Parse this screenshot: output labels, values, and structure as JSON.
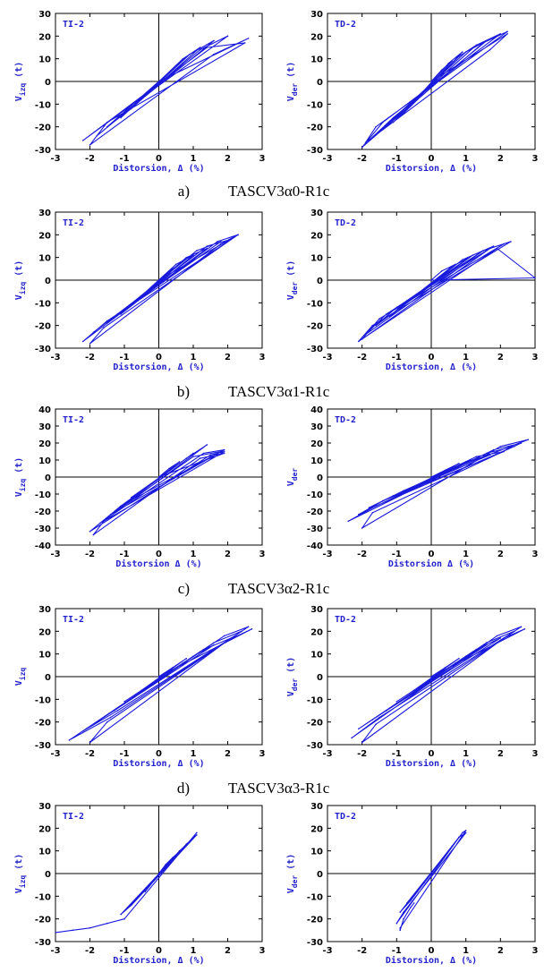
{
  "figure": {
    "rows": [
      {
        "letter": "a)",
        "specimen": "TASCV3α0-R1c"
      },
      {
        "letter": "b)",
        "specimen": "TASCV3α1-R1c"
      },
      {
        "letter": "c)",
        "specimen": "TASCV3α2-R1c"
      },
      {
        "letter": "d)",
        "specimen": "TASCV3α3-R1c"
      },
      {
        "letter": "",
        "specimen": ""
      }
    ]
  },
  "colors": {
    "curve": "#1a1adc",
    "text": "#2222cc",
    "axis": "#000000"
  },
  "chart_data": [
    {
      "type": "line",
      "row": 0,
      "panel": "left",
      "title": "TI-2",
      "ylabel_main": "V",
      "ylabel_sub": "izq",
      "ylabel_unit": "(t)",
      "xlabel": "Distorsion, Δ (%)",
      "xlim": [
        -3,
        3
      ],
      "ylim": [
        -30,
        30
      ],
      "xticks": [
        -3,
        -2,
        -1,
        0,
        1,
        2,
        3
      ],
      "yticks": [
        -30,
        -20,
        -10,
        0,
        10,
        20,
        30
      ],
      "x": [
        0,
        0.3,
        0.6,
        -0.4,
        -0.8,
        0.5,
        0.9,
        -0.6,
        -1.1,
        0.7,
        1.2,
        -0.8,
        -1.5,
        0.9,
        1.6,
        -1.0,
        -1.8,
        1.2,
        2.0,
        -1.3,
        -2.2,
        1.4,
        2.5,
        -1.5,
        -2.0,
        1.6,
        2.6,
        0
      ],
      "y": [
        0,
        4,
        8,
        -6,
        -12,
        7,
        12,
        -9,
        -16,
        10,
        15,
        -12,
        -20,
        12,
        18,
        -14,
        -24,
        14,
        20,
        -16,
        -26,
        15,
        17,
        -18,
        -28,
        12,
        19,
        0
      ]
    },
    {
      "type": "line",
      "row": 0,
      "panel": "right",
      "title": "TD-2",
      "ylabel_main": "V",
      "ylabel_sub": "der",
      "ylabel_unit": "(t)",
      "xlabel": "Distorsion, Δ (%)",
      "xlim": [
        -3,
        3
      ],
      "ylim": [
        -30,
        30
      ],
      "xticks": [
        -3,
        -2,
        -1,
        0,
        1,
        2,
        3
      ],
      "yticks": [
        -30,
        -20,
        -10,
        0,
        10,
        20,
        30
      ],
      "x": [
        0,
        0.3,
        0.6,
        -0.4,
        -0.8,
        0.5,
        0.9,
        -0.6,
        -1.1,
        0.8,
        1.3,
        -0.9,
        -1.5,
        1.0,
        1.6,
        -1.1,
        -1.8,
        1.3,
        2.0,
        -1.4,
        -2.0,
        1.5,
        2.2,
        -1.6,
        -1.9,
        1.7,
        2.2,
        0
      ],
      "y": [
        0,
        5,
        9,
        -8,
        -14,
        8,
        13,
        -11,
        -18,
        11,
        16,
        -14,
        -22,
        13,
        18,
        -16,
        -26,
        16,
        21,
        -18,
        -29,
        17,
        22,
        -20,
        -27,
        14,
        21,
        0
      ]
    },
    {
      "type": "line",
      "row": 1,
      "panel": "left",
      "title": "TI-2",
      "ylabel_main": "V",
      "ylabel_sub": "izq",
      "ylabel_unit": "(t)",
      "xlabel": "Distorsion, Δ (%)",
      "xlim": [
        -3,
        3
      ],
      "ylim": [
        -30,
        30
      ],
      "xticks": [
        -3,
        -2,
        -1,
        0,
        1,
        2,
        3
      ],
      "yticks": [
        -30,
        -20,
        -10,
        0,
        10,
        20,
        30
      ],
      "x": [
        0,
        0.3,
        0.6,
        -0.4,
        -0.8,
        0.5,
        1.0,
        -0.6,
        -1.1,
        0.8,
        1.4,
        -0.9,
        -1.5,
        1.1,
        1.8,
        -1.2,
        -1.9,
        1.4,
        2.1,
        -1.5,
        -2.2,
        1.7,
        2.3,
        -1.6,
        -2.0,
        1.8,
        2.3,
        0
      ],
      "y": [
        0,
        4,
        7,
        -6,
        -11,
        7,
        11,
        -9,
        -15,
        10,
        14,
        -12,
        -19,
        13,
        17,
        -15,
        -23,
        15,
        18,
        -18,
        -27,
        17,
        20,
        -21,
        -28,
        16,
        20,
        0
      ]
    },
    {
      "type": "line",
      "row": 1,
      "panel": "right",
      "title": "TD-2",
      "ylabel_main": "V",
      "ylabel_sub": "der",
      "ylabel_unit": "(t)",
      "xlabel": "Distorsion, Δ (%)",
      "xlim": [
        -3,
        3
      ],
      "ylim": [
        -30,
        30
      ],
      "xticks": [
        -3,
        -2,
        -1,
        0,
        1,
        2,
        3
      ],
      "yticks": [
        -30,
        -20,
        -10,
        0,
        10,
        20,
        30
      ],
      "x": [
        0,
        0.3,
        0.7,
        -0.4,
        -0.9,
        0.6,
        1.1,
        -0.7,
        -1.2,
        0.9,
        1.5,
        -1.0,
        -1.6,
        1.2,
        1.8,
        -1.3,
        -1.9,
        1.5,
        2.1,
        -1.5,
        -2.0,
        1.7,
        2.3,
        -1.7,
        -2.1,
        1.9,
        3.0,
        0
      ],
      "y": [
        0,
        4,
        7,
        -6,
        -12,
        6,
        10,
        -9,
        -16,
        9,
        13,
        -12,
        -20,
        11,
        15,
        -15,
        -24,
        13,
        16,
        -17,
        -26,
        14,
        17,
        -20,
        -27,
        14,
        1,
        0
      ]
    },
    {
      "type": "line",
      "row": 2,
      "panel": "left",
      "title": "TI-2",
      "ylabel_main": "V",
      "ylabel_sub": "izq",
      "ylabel_unit": "(t)",
      "xlabel": "Distorsion Δ (%)",
      "xlim": [
        -3,
        3
      ],
      "ylim": [
        -40,
        40
      ],
      "xticks": [
        -3,
        -2,
        -1,
        0,
        1,
        2,
        3
      ],
      "yticks": [
        -40,
        -30,
        -20,
        -10,
        0,
        10,
        20,
        30,
        40
      ],
      "x": [
        0,
        0.3,
        0.6,
        -0.4,
        -0.8,
        0.6,
        1.0,
        -0.6,
        -1.1,
        0.8,
        1.4,
        -0.8,
        -1.4,
        1.0,
        1.8,
        -1.1,
        -1.7,
        1.3,
        1.9,
        -1.4,
        -2.0,
        1.5,
        1.9,
        -1.6,
        -1.9,
        1.2,
        1.9,
        0
      ],
      "y": [
        0,
        5,
        9,
        -7,
        -12,
        8,
        14,
        -10,
        -17,
        11,
        19,
        -14,
        -22,
        12,
        15,
        -17,
        -27,
        14,
        16,
        -22,
        -32,
        13,
        15,
        -26,
        -34,
        11,
        14,
        0
      ]
    },
    {
      "type": "line",
      "row": 2,
      "panel": "right",
      "title": "TD-2",
      "ylabel_main": "V",
      "ylabel_sub": "der",
      "ylabel_unit": "",
      "xlabel": "Distorsion Δ (%)",
      "xlim": [
        -3,
        3
      ],
      "ylim": [
        -40,
        40
      ],
      "xticks": [
        -3,
        -2,
        -1,
        0,
        1,
        2,
        3
      ],
      "yticks": [
        -40,
        -30,
        -20,
        -10,
        0,
        10,
        20,
        30,
        40
      ],
      "x": [
        0,
        0.4,
        0.8,
        -0.5,
        -1.0,
        0.7,
        1.3,
        -0.8,
        -1.4,
        1.0,
        1.7,
        -1.1,
        -1.8,
        1.3,
        2.1,
        -1.4,
        -2.1,
        1.6,
        2.4,
        -1.6,
        -2.4,
        1.8,
        2.6,
        -1.7,
        -2.0,
        2.0,
        2.8,
        0
      ],
      "y": [
        0,
        4,
        8,
        -6,
        -11,
        6,
        11,
        -8,
        -14,
        9,
        13,
        -11,
        -18,
        12,
        15,
        -14,
        -22,
        14,
        18,
        -17,
        -26,
        16,
        20,
        -21,
        -30,
        18,
        22,
        0
      ]
    },
    {
      "type": "line",
      "row": 3,
      "panel": "left",
      "title": "TI-2",
      "ylabel_main": "V",
      "ylabel_sub": "izq",
      "ylabel_unit": "",
      "xlabel": "Distorsion, Δ (%)",
      "xlim": [
        -3,
        3
      ],
      "ylim": [
        -30,
        30
      ],
      "xticks": [
        -3,
        -2,
        -1,
        0,
        1,
        2,
        3
      ],
      "yticks": [
        -30,
        -20,
        -10,
        0,
        10,
        20,
        30
      ],
      "x": [
        0,
        0.4,
        0.8,
        -0.5,
        -1.0,
        0.7,
        1.2,
        -0.7,
        -1.3,
        1.0,
        1.6,
        -1.0,
        -1.8,
        1.3,
        2.1,
        -1.2,
        -2.2,
        1.6,
        2.4,
        -1.4,
        -2.6,
        1.9,
        2.6,
        -1.5,
        -2.0,
        2.0,
        2.7,
        0
      ],
      "y": [
        0,
        4,
        8,
        -6,
        -11,
        6,
        11,
        -9,
        -15,
        9,
        14,
        -12,
        -20,
        12,
        17,
        -15,
        -24,
        15,
        20,
        -18,
        -28,
        18,
        22,
        -20,
        -29,
        16,
        21,
        0
      ]
    },
    {
      "type": "line",
      "row": 3,
      "panel": "right",
      "title": "TD-2",
      "ylabel_main": "V",
      "ylabel_sub": "der",
      "ylabel_unit": "(t)",
      "xlabel": "Distorsion, Δ (%)",
      "xlim": [
        -3,
        3
      ],
      "ylim": [
        -30,
        30
      ],
      "xticks": [
        -3,
        -2,
        -1,
        0,
        1,
        2,
        3
      ],
      "yticks": [
        -30,
        -20,
        -10,
        0,
        10,
        20,
        30
      ],
      "x": [
        0,
        0.4,
        0.8,
        -0.5,
        -1.0,
        0.7,
        1.2,
        -0.7,
        -1.3,
        1.0,
        1.6,
        -1.0,
        -1.7,
        1.3,
        2.0,
        -1.3,
        -2.1,
        1.6,
        2.4,
        -1.5,
        -2.3,
        1.9,
        2.6,
        -1.6,
        -2.0,
        2.1,
        2.7,
        0
      ],
      "y": [
        0,
        4,
        8,
        -6,
        -11,
        6,
        11,
        -9,
        -15,
        9,
        14,
        -12,
        -19,
        12,
        17,
        -15,
        -23,
        15,
        20,
        -18,
        -27,
        18,
        22,
        -21,
        -29,
        17,
        21,
        0
      ]
    },
    {
      "type": "line",
      "row": 4,
      "panel": "left",
      "title": "TI-2",
      "ylabel_main": "V",
      "ylabel_sub": "izq",
      "ylabel_unit": "(t)",
      "xlabel": "Distorsion, Δ (%)",
      "xlim": [
        -3,
        3
      ],
      "ylim": [
        -30,
        30
      ],
      "xticks": [
        -3,
        -2,
        -1,
        0,
        1,
        2,
        3
      ],
      "yticks": [
        -30,
        -20,
        -10,
        0,
        10,
        20,
        30
      ],
      "x": [
        0,
        0.2,
        0.4,
        -0.2,
        -0.4,
        0.4,
        0.7,
        -0.4,
        -0.7,
        0.6,
        0.9,
        -0.6,
        -0.9,
        0.8,
        1.1,
        -0.8,
        -1.1,
        1.0,
        1.1,
        -1.0,
        -1.5,
        -2.0,
        -2.5,
        -3.0
      ],
      "y": [
        0,
        4,
        7,
        -4,
        -8,
        7,
        11,
        -7,
        -12,
        10,
        14,
        -10,
        -15,
        13,
        17,
        -14,
        -18,
        16,
        18,
        -20,
        -22,
        -24,
        -25,
        -26
      ]
    },
    {
      "type": "line",
      "row": 4,
      "panel": "right",
      "title": "TD-2",
      "ylabel_main": "V",
      "ylabel_sub": "der",
      "ylabel_unit": "(t)",
      "xlabel": "Distorsion, Δ (%)",
      "xlim": [
        -3,
        3
      ],
      "ylim": [
        -30,
        30
      ],
      "xticks": [
        -3,
        -2,
        -1,
        0,
        1,
        2,
        3
      ],
      "yticks": [
        -30,
        -20,
        -10,
        0,
        10,
        20,
        30
      ],
      "x": [
        0,
        0.2,
        0.4,
        -0.2,
        -0.4,
        0.4,
        0.6,
        -0.4,
        -0.7,
        0.6,
        0.8,
        -0.6,
        -0.9,
        0.8,
        1.0,
        -0.8,
        -1.0,
        0.9,
        1.0,
        -0.9,
        -0.9,
        -0.8,
        -0.6,
        -0.5
      ],
      "y": [
        0,
        4,
        8,
        -4,
        -8,
        8,
        12,
        -8,
        -13,
        12,
        16,
        -12,
        -17,
        16,
        18,
        -17,
        -22,
        18,
        19,
        -24,
        -25,
        -20,
        -15,
        -13
      ]
    }
  ]
}
